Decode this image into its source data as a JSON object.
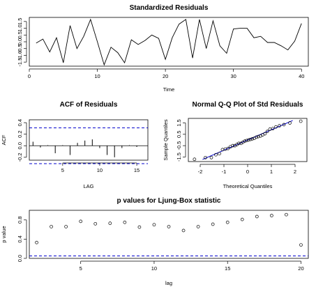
{
  "chart_data": [
    {
      "type": "line",
      "title": "Standardized Residuals",
      "xlabel": "Time",
      "ylabel": "",
      "xlim": [
        0,
        41
      ],
      "ylim": [
        -1.8,
        1.8
      ],
      "xticks": [
        0,
        10,
        20,
        30,
        40
      ],
      "yticks": [
        -1.5,
        -1.0,
        -0.5,
        0.0,
        0.5,
        1.0,
        1.5
      ],
      "ytick_labels": [
        "-1.5",
        "-1.0",
        "-0.5",
        "0.0",
        "0.5",
        "1.0",
        "1.5"
      ],
      "x": [
        1,
        2,
        3,
        4,
        5,
        6,
        7,
        8,
        9,
        10,
        11,
        12,
        13,
        14,
        15,
        16,
        17,
        18,
        19,
        20,
        21,
        22,
        23,
        24,
        25,
        26,
        27,
        28,
        29,
        30,
        31,
        32,
        33,
        34,
        35,
        36,
        37,
        38,
        39,
        40
      ],
      "values": [
        -0.1,
        0.2,
        -0.75,
        0.3,
        -1.55,
        1.2,
        -0.5,
        0.4,
        1.65,
        0.0,
        -1.7,
        -0.4,
        -0.8,
        -1.55,
        0.15,
        -0.2,
        0.1,
        0.5,
        0.25,
        -1.3,
        0.3,
        1.3,
        1.65,
        -1.2,
        1.65,
        -0.5,
        1.55,
        -0.3,
        -0.85,
        0.95,
        1.0,
        1.0,
        0.3,
        0.4,
        -0.05,
        -0.05,
        -0.3,
        -0.6,
        0.05,
        1.35
      ]
    },
    {
      "type": "bar",
      "title": "ACF of Residuals",
      "xlabel": "LAG",
      "ylabel": "ACF",
      "xlim": [
        0.5,
        16.5
      ],
      "ylim": [
        -0.25,
        0.45
      ],
      "xticks": [
        5,
        10,
        15
      ],
      "yticks": [
        -0.2,
        0.0,
        0.2,
        0.4
      ],
      "ytick_labels": [
        "-0.2",
        "0.0",
        "0.2",
        "0.4"
      ],
      "x": [
        1,
        2,
        3,
        4,
        5,
        6,
        7,
        8,
        9,
        10,
        11,
        12,
        13,
        14,
        15,
        16
      ],
      "values": [
        0.07,
        -0.03,
        0.01,
        -0.13,
        0.01,
        -0.16,
        0.05,
        0.09,
        0.11,
        -0.04,
        -0.16,
        -0.2,
        -0.04,
        0.01,
        -0.02,
        0.0
      ],
      "bands": [
        0.31,
        -0.31
      ],
      "band_color": "#0000cc"
    },
    {
      "type": "scatter",
      "title": "Normal Q-Q Plot of Std Residuals",
      "xlabel": "Theoretical Quantiles",
      "ylabel": "Sample Quantiles",
      "xlim": [
        -2.5,
        2.5
      ],
      "ylim": [
        -1.9,
        1.9
      ],
      "xticks": [
        -2,
        -1,
        0,
        1,
        2
      ],
      "yticks": [
        -1.5,
        -0.5,
        0.5,
        1.5
      ],
      "ytick_labels": [
        "-1.5",
        "-0.5",
        "0.5",
        "1.5"
      ],
      "x": [
        -2.24,
        -1.78,
        -1.53,
        -1.34,
        -1.19,
        -1.06,
        -0.94,
        -0.83,
        -0.73,
        -0.63,
        -0.54,
        -0.45,
        -0.37,
        -0.28,
        -0.2,
        -0.12,
        -0.04,
        0.04,
        0.12,
        0.2,
        0.28,
        0.37,
        0.45,
        0.54,
        0.63,
        0.73,
        0.83,
        0.94,
        1.06,
        1.19,
        1.34,
        1.53,
        1.78,
        2.24
      ],
      "values": [
        -1.7,
        -1.55,
        -1.55,
        -1.3,
        -1.2,
        -0.85,
        -0.8,
        -0.75,
        -0.6,
        -0.5,
        -0.5,
        -0.4,
        -0.3,
        -0.3,
        -0.2,
        -0.1,
        -0.05,
        0.0,
        0.05,
        0.1,
        0.15,
        0.25,
        0.3,
        0.35,
        0.45,
        0.55,
        0.75,
        0.95,
        1.0,
        1.15,
        1.25,
        1.35,
        1.5,
        1.65
      ],
      "ref_line_color": "#0000cc"
    },
    {
      "type": "scatter",
      "title": "p values for Ljung-Box statistic",
      "xlabel": "lag",
      "ylabel": "p value",
      "xlim": [
        1.5,
        20.5
      ],
      "ylim": [
        0,
        1.0
      ],
      "xticks": [
        5,
        10,
        15,
        20
      ],
      "yticks": [
        0.0,
        0.4,
        0.8
      ],
      "ytick_labels": [
        "0.0",
        "0.4",
        "0.8"
      ],
      "x": [
        2,
        3,
        4,
        5,
        6,
        7,
        8,
        9,
        10,
        11,
        12,
        13,
        14,
        15,
        16,
        17,
        18,
        19,
        20
      ],
      "values": [
        0.33,
        0.66,
        0.66,
        0.77,
        0.72,
        0.73,
        0.75,
        0.65,
        0.7,
        0.66,
        0.58,
        0.66,
        0.71,
        0.75,
        0.81,
        0.87,
        0.89,
        0.91,
        0.28
      ],
      "threshold": 0.05,
      "threshold_color": "#0000cc"
    }
  ]
}
